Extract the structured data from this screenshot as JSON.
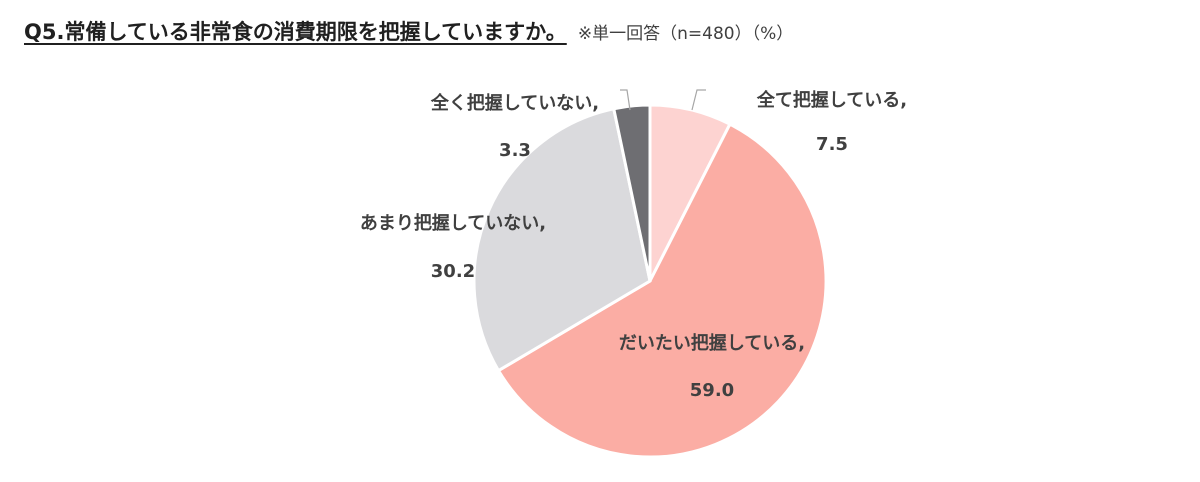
{
  "title": "Q5.常備している非常食の消費期限を把握していますか。",
  "note": "※単一回答（n=480）（%）",
  "chart_data": {
    "type": "pie",
    "start_angle_deg": 0,
    "direction": "clockwise",
    "slices": [
      {
        "label": "全て把握している,",
        "value": 7.5,
        "value_text": "7.5",
        "color": "#FDD3D1"
      },
      {
        "label": "だいたい把握している,",
        "value": 59.0,
        "value_text": "59.0",
        "color": "#FBADA4"
      },
      {
        "label": "あまり把握していない,",
        "value": 30.2,
        "value_text": "30.2",
        "color": "#DADADD"
      },
      {
        "label": "全く把握していない,",
        "value": 3.3,
        "value_text": "3.3",
        "color": "#6E6E72"
      }
    ]
  }
}
